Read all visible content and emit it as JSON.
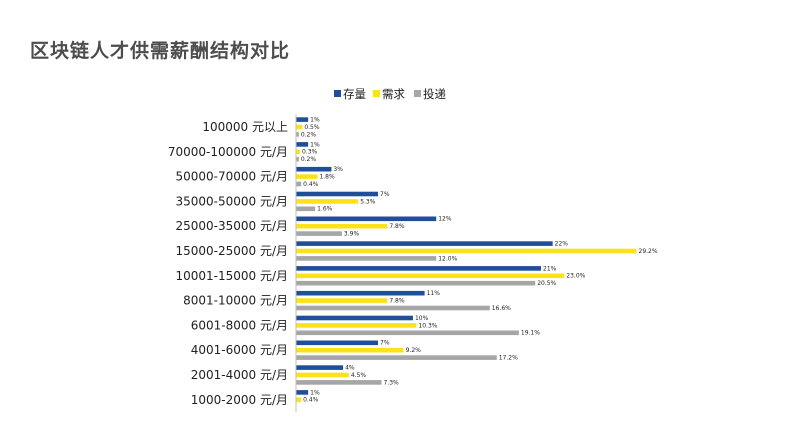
{
  "page": {
    "title": "区块链人才供需薪酬结构对比"
  },
  "chart_data": {
    "type": "bar",
    "orientation": "horizontal",
    "title": "区块链人才供需薪酬结构对比",
    "categories": [
      "100000 元以上",
      "70000-100000 元/月",
      "50000-70000 元/月",
      "35000-50000 元/月",
      "25000-35000 元/月",
      "15000-25000 元/月",
      "10001-15000 元/月",
      "8001-10000 元/月",
      "6001-8000 元/月",
      "4001-6000 元/月",
      "2001-4000 元/月",
      "1000-2000 元/月"
    ],
    "series": [
      {
        "name": "存量",
        "color": "#1f4e9b",
        "values": [
          1,
          1,
          3,
          7,
          12,
          22,
          21,
          11,
          10,
          7,
          4,
          1
        ],
        "labels": [
          "1%",
          "1%",
          "3%",
          "7%",
          "12%",
          "22%",
          "21%",
          "11%",
          "10%",
          "7%",
          "4%",
          "1%"
        ]
      },
      {
        "name": "需求",
        "color": "#ffe11a",
        "values": [
          0.5,
          0.3,
          1.8,
          5.3,
          7.8,
          29.2,
          23.0,
          7.8,
          10.3,
          9.2,
          4.5,
          0.4
        ],
        "labels": [
          "0.5%",
          "0.3%",
          "1.8%",
          "5.3%",
          "7.8%",
          "29.2%",
          "23.0%",
          "7.8%",
          "10.3%",
          "9.2%",
          "4.5%",
          "0.4%"
        ]
      },
      {
        "name": "投递",
        "color": "#a6a6a6",
        "values": [
          0.2,
          0.2,
          0.4,
          1.6,
          3.9,
          12.0,
          20.5,
          16.6,
          19.1,
          17.2,
          7.3,
          null
        ],
        "labels": [
          "0.2%",
          "0.2%",
          "0.4%",
          "1.6%",
          "3.9%",
          "12.0%",
          "20.5%",
          "16.6%",
          "19.1%",
          "17.2%",
          "7.3%",
          ""
        ]
      }
    ],
    "xlim": [
      0,
      29.2
    ],
    "legend_position": "top-center",
    "grid": false,
    "xaxis_visible": false
  }
}
